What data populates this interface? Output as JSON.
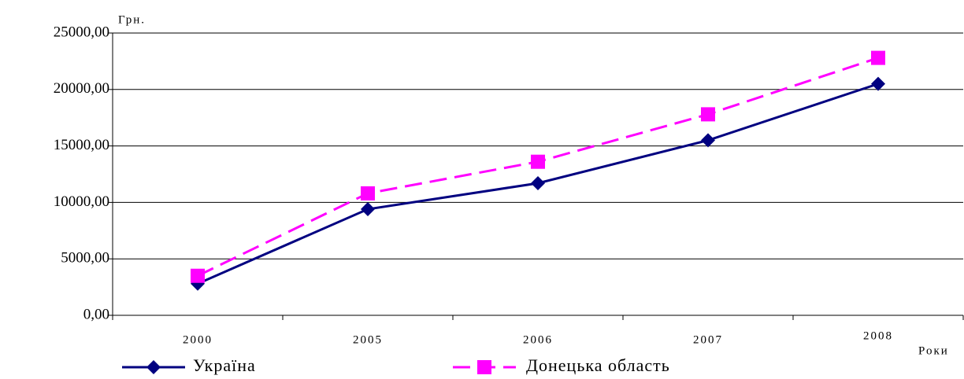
{
  "chart_data": {
    "type": "line",
    "y_label": "Грн.",
    "x_label": "Роки",
    "categories": [
      "2000",
      "2005",
      "2006",
      "2007",
      "2008"
    ],
    "series": [
      {
        "name": "Україна",
        "color": "#000080",
        "marker": "diamond",
        "dash": false,
        "values": [
          2800,
          9400,
          11700,
          15500,
          20500
        ]
      },
      {
        "name": "Донецька область",
        "color": "#ff00ff",
        "marker": "square",
        "dash": true,
        "values": [
          3500,
          10800,
          13600,
          17800,
          22800
        ]
      }
    ],
    "ylim": [
      0,
      25000
    ],
    "yticks": [
      {
        "value": 0,
        "label": "0,00"
      },
      {
        "value": 5000,
        "label": "5000,00"
      },
      {
        "value": 10000,
        "label": "10000,00"
      },
      {
        "value": 15000,
        "label": "15000,00"
      },
      {
        "value": 20000,
        "label": "20000,00"
      },
      {
        "value": 25000,
        "label": "25000,00"
      }
    ],
    "grid": true
  }
}
